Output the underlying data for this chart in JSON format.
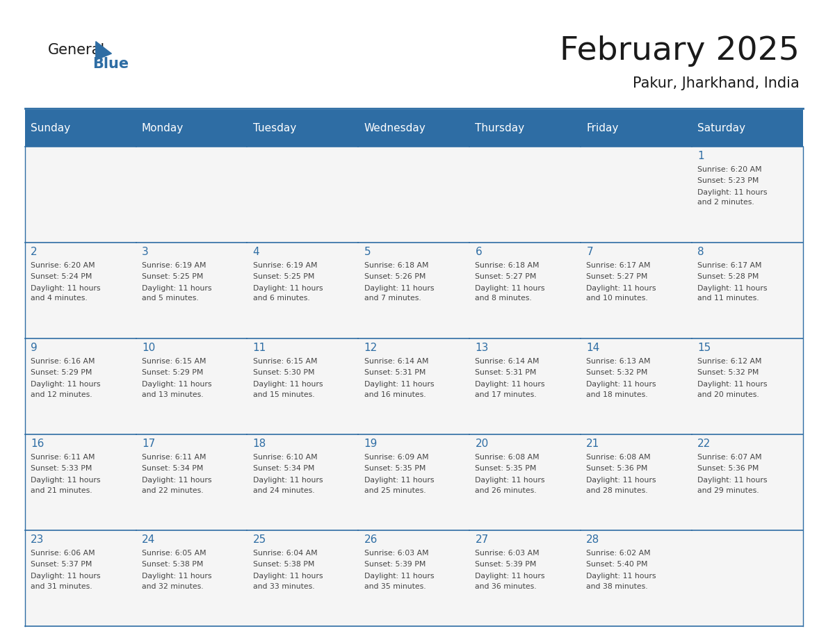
{
  "title": "February 2025",
  "subtitle": "Pakur, Jharkhand, India",
  "header_bg": "#2E6DA4",
  "header_text": "#FFFFFF",
  "days_of_week": [
    "Sunday",
    "Monday",
    "Tuesday",
    "Wednesday",
    "Thursday",
    "Friday",
    "Saturday"
  ],
  "border_color": "#2E6DA4",
  "day_number_color": "#2E6DA4",
  "text_color": "#444444",
  "title_color": "#1a1a1a",
  "cell_bg": "#F5F5F5",
  "logo_general_color": "#1a1a1a",
  "logo_blue_color": "#2E6DA4",
  "logo_triangle_color": "#2E6DA4",
  "calendar": [
    [
      null,
      null,
      null,
      null,
      null,
      null,
      {
        "day": 1,
        "sunrise": "6:20 AM",
        "sunset": "5:23 PM",
        "daylight": "11 hours and 2 minutes."
      }
    ],
    [
      {
        "day": 2,
        "sunrise": "6:20 AM",
        "sunset": "5:24 PM",
        "daylight": "11 hours and 4 minutes."
      },
      {
        "day": 3,
        "sunrise": "6:19 AM",
        "sunset": "5:25 PM",
        "daylight": "11 hours and 5 minutes."
      },
      {
        "day": 4,
        "sunrise": "6:19 AM",
        "sunset": "5:25 PM",
        "daylight": "11 hours and 6 minutes."
      },
      {
        "day": 5,
        "sunrise": "6:18 AM",
        "sunset": "5:26 PM",
        "daylight": "11 hours and 7 minutes."
      },
      {
        "day": 6,
        "sunrise": "6:18 AM",
        "sunset": "5:27 PM",
        "daylight": "11 hours and 8 minutes."
      },
      {
        "day": 7,
        "sunrise": "6:17 AM",
        "sunset": "5:27 PM",
        "daylight": "11 hours and 10 minutes."
      },
      {
        "day": 8,
        "sunrise": "6:17 AM",
        "sunset": "5:28 PM",
        "daylight": "11 hours and 11 minutes."
      }
    ],
    [
      {
        "day": 9,
        "sunrise": "6:16 AM",
        "sunset": "5:29 PM",
        "daylight": "11 hours and 12 minutes."
      },
      {
        "day": 10,
        "sunrise": "6:15 AM",
        "sunset": "5:29 PM",
        "daylight": "11 hours and 13 minutes."
      },
      {
        "day": 11,
        "sunrise": "6:15 AM",
        "sunset": "5:30 PM",
        "daylight": "11 hours and 15 minutes."
      },
      {
        "day": 12,
        "sunrise": "6:14 AM",
        "sunset": "5:31 PM",
        "daylight": "11 hours and 16 minutes."
      },
      {
        "day": 13,
        "sunrise": "6:14 AM",
        "sunset": "5:31 PM",
        "daylight": "11 hours and 17 minutes."
      },
      {
        "day": 14,
        "sunrise": "6:13 AM",
        "sunset": "5:32 PM",
        "daylight": "11 hours and 18 minutes."
      },
      {
        "day": 15,
        "sunrise": "6:12 AM",
        "sunset": "5:32 PM",
        "daylight": "11 hours and 20 minutes."
      }
    ],
    [
      {
        "day": 16,
        "sunrise": "6:11 AM",
        "sunset": "5:33 PM",
        "daylight": "11 hours and 21 minutes."
      },
      {
        "day": 17,
        "sunrise": "6:11 AM",
        "sunset": "5:34 PM",
        "daylight": "11 hours and 22 minutes."
      },
      {
        "day": 18,
        "sunrise": "6:10 AM",
        "sunset": "5:34 PM",
        "daylight": "11 hours and 24 minutes."
      },
      {
        "day": 19,
        "sunrise": "6:09 AM",
        "sunset": "5:35 PM",
        "daylight": "11 hours and 25 minutes."
      },
      {
        "day": 20,
        "sunrise": "6:08 AM",
        "sunset": "5:35 PM",
        "daylight": "11 hours and 26 minutes."
      },
      {
        "day": 21,
        "sunrise": "6:08 AM",
        "sunset": "5:36 PM",
        "daylight": "11 hours and 28 minutes."
      },
      {
        "day": 22,
        "sunrise": "6:07 AM",
        "sunset": "5:36 PM",
        "daylight": "11 hours and 29 minutes."
      }
    ],
    [
      {
        "day": 23,
        "sunrise": "6:06 AM",
        "sunset": "5:37 PM",
        "daylight": "11 hours and 31 minutes."
      },
      {
        "day": 24,
        "sunrise": "6:05 AM",
        "sunset": "5:38 PM",
        "daylight": "11 hours and 32 minutes."
      },
      {
        "day": 25,
        "sunrise": "6:04 AM",
        "sunset": "5:38 PM",
        "daylight": "11 hours and 33 minutes."
      },
      {
        "day": 26,
        "sunrise": "6:03 AM",
        "sunset": "5:39 PM",
        "daylight": "11 hours and 35 minutes."
      },
      {
        "day": 27,
        "sunrise": "6:03 AM",
        "sunset": "5:39 PM",
        "daylight": "11 hours and 36 minutes."
      },
      {
        "day": 28,
        "sunrise": "6:02 AM",
        "sunset": "5:40 PM",
        "daylight": "11 hours and 38 minutes."
      },
      null
    ]
  ]
}
